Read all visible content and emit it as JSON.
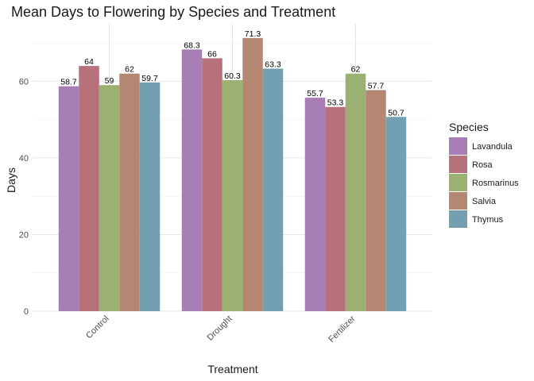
{
  "chart_data": {
    "type": "bar",
    "title": "Mean Days to Flowering by Species and Treatment",
    "xlabel": "Treatment",
    "ylabel": "Days",
    "categories": [
      "Control",
      "Drought",
      "Fertilizer"
    ],
    "ylim": [
      0,
      75
    ],
    "yticks": [
      "0",
      "20",
      "40",
      "60"
    ],
    "grid": true,
    "legend_position": "right",
    "legend_title": "Species",
    "series": [
      {
        "name": "Lavandula",
        "color": "#A77DB5",
        "values": [
          58.7,
          68.3,
          55.7
        ],
        "labels": [
          "58.7",
          "68.3",
          "55.7"
        ]
      },
      {
        "name": "Rosa",
        "color": "#B6717B",
        "values": [
          64,
          66,
          53.3
        ],
        "labels": [
          "64",
          "66",
          "53.3"
        ]
      },
      {
        "name": "Rosmarinus",
        "color": "#9AB171",
        "values": [
          59,
          60.3,
          62
        ],
        "labels": [
          "59",
          "60.3",
          "62"
        ]
      },
      {
        "name": "Salvia",
        "color": "#B38772",
        "values": [
          62,
          71.3,
          57.7
        ],
        "labels": [
          "62",
          "71.3",
          "57.7"
        ]
      },
      {
        "name": "Thymus",
        "color": "#72A0B2",
        "values": [
          59.7,
          63.3,
          50.7
        ],
        "labels": [
          "59.7",
          "63.3",
          "50.7"
        ]
      }
    ]
  }
}
